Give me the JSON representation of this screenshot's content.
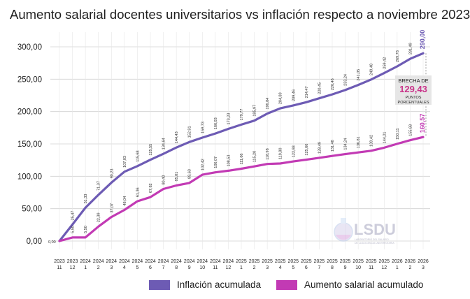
{
  "title": "Aumento salarial docentes universitarios vs inflación respecto a noviembre 2023",
  "chart_data": {
    "type": "line",
    "title": "Aumento salarial docentes universitarios vs inflación respecto a noviembre 2023",
    "xlabel": "",
    "ylabel": "",
    "ylim": [
      0,
      320
    ],
    "yticks": [
      0,
      50,
      100,
      150,
      200,
      250,
      300
    ],
    "ytick_labels": [
      "0,00",
      "50,00",
      "100,00",
      "150,00",
      "200,00",
      "250,00",
      "300,00"
    ],
    "grid": true,
    "categories": [
      [
        "2023",
        "11"
      ],
      [
        "2023",
        "12"
      ],
      [
        "2024",
        "1"
      ],
      [
        "2024",
        "2"
      ],
      [
        "2024",
        "3"
      ],
      [
        "2024",
        "4"
      ],
      [
        "2024",
        "5"
      ],
      [
        "2024",
        "6"
      ],
      [
        "2024",
        "7"
      ],
      [
        "2024",
        "8"
      ],
      [
        "2024",
        "9"
      ],
      [
        "2024",
        "10"
      ],
      [
        "2024",
        "11"
      ],
      [
        "2024",
        "12"
      ],
      [
        "2025",
        "1"
      ],
      [
        "2025",
        "2"
      ],
      [
        "2025",
        "3"
      ],
      [
        "2025",
        "4"
      ],
      [
        "2025",
        "5"
      ],
      [
        "2025",
        "6"
      ],
      [
        "2025",
        "7"
      ],
      [
        "2025",
        "8"
      ],
      [
        "2025",
        "9"
      ],
      [
        "2025",
        "10"
      ],
      [
        "2025",
        "11"
      ],
      [
        "2025",
        "12"
      ],
      [
        "2026",
        "1"
      ],
      [
        "2026",
        "2"
      ],
      [
        "2026",
        "3"
      ]
    ],
    "series": [
      {
        "name": "Inflación acumulada",
        "color": "#6d5bb4",
        "values": [
          0,
          25.47,
          51.33,
          71.37,
          90.23,
          107.03,
          115.68,
          125.55,
          134.64,
          144.43,
          152.91,
          159.73,
          166.03,
          173.23,
          179.77,
          185.97,
          196.84,
          204.89,
          209.46,
          214.47,
          220.45,
          226.46,
          233.24,
          241.05,
          249.48,
          259.42,
          269.78,
          281.49,
          290.0
        ],
        "labels": [
          "0,00",
          "25,47",
          "51,33",
          "71,37",
          "90,23",
          "107,03",
          "115,68",
          "125,55",
          "134,64",
          "144,43",
          "152,91",
          "159,73",
          "166,03",
          "173,23",
          "179,77",
          "185,97",
          "196,84",
          "204,89",
          "209,46",
          "214,47",
          "220,45",
          "226,46",
          "233,24",
          "241,05",
          "249,48",
          "259,42",
          "269,78",
          "281,49",
          "290,00"
        ]
      },
      {
        "name": "Aumento salarial acumulado",
        "color": "#c23ab4",
        "values": [
          0,
          5.5,
          5.5,
          22.39,
          37.07,
          48.04,
          61.36,
          67.82,
          80.4,
          85.81,
          89.63,
          102.42,
          106.07,
          108.53,
          111.66,
          115.2,
          118.98,
          119.8,
          122.88,
          125.66,
          128.49,
          131.48,
          134.24,
          136.81,
          139.42,
          144.21,
          150.11,
          155.68,
          160.57
        ],
        "labels": [
          "",
          "5,50",
          "5,50",
          "22,39",
          "37,07",
          "48,04",
          "61,36",
          "67,82",
          "80,40",
          "85,81",
          "89,63",
          "102,42",
          "106,07",
          "108,53",
          "111,66",
          "115,20",
          "118,98",
          "119,80",
          "122,88",
          "125,66",
          "128,49",
          "131,48",
          "134,24",
          "136,81",
          "139,42",
          "144,21",
          "150,11",
          "155,68",
          "160,57"
        ]
      }
    ],
    "annotation": {
      "line1": "BRECHA DE",
      "value": "129,43",
      "line2": "PUNTOS",
      "line3": "PORCENTUALES"
    }
  },
  "legend": {
    "inflation": "Inflación acumulada",
    "salary": "Aumento salarial acumulado"
  },
  "logo": {
    "name": "LSDU",
    "line1": "LABORATORIO DEL SALARIO",
    "line2": "DE LA DOCENCIA UNIVERSITARIA"
  },
  "colors": {
    "inflation": "#6d5bb4",
    "salary": "#c23ab4",
    "grid": "#d0d0d0",
    "gap_box": "#e6e6e6",
    "gap_value": "#c9348a"
  }
}
